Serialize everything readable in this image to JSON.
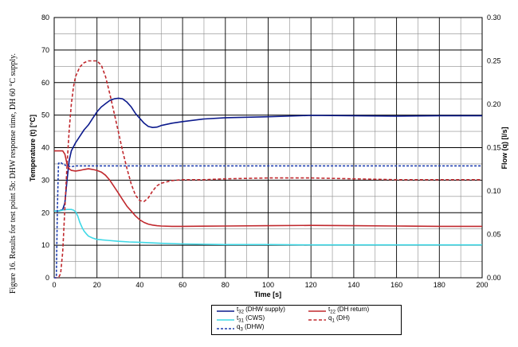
{
  "caption": "Figure 16. Results for test point 5b: DHW response time, DH 60 °C supply.",
  "chart_data": {
    "type": "line",
    "xlabel": "Time [s]",
    "ylabel_left": "Temperature (t) [°C]",
    "ylabel_right": "Flow (q) [l/s]",
    "xlim": [
      0,
      200
    ],
    "ylim_left": [
      0,
      80
    ],
    "ylim_right": [
      0,
      0.3
    ],
    "x_ticks": [
      0,
      20,
      40,
      60,
      80,
      100,
      120,
      140,
      160,
      180,
      200
    ],
    "y_ticks_left": [
      0,
      10,
      20,
      30,
      40,
      50,
      60,
      70,
      80
    ],
    "y_ticks_right": [
      "0.00",
      "0.05",
      "0.10",
      "0.15",
      "0.20",
      "0.25",
      "0.30"
    ],
    "grid": true,
    "legend_position": "bottom-center",
    "series": [
      {
        "name": "t32 (DHW supply)",
        "label_main": "t",
        "label_sub": "32",
        "label_rest": " (DHW supply)",
        "axis": "left",
        "color": "#0c1a8c",
        "dash": "solid",
        "x": [
          0,
          2,
          4,
          5,
          6,
          7,
          8,
          10,
          12,
          14,
          16,
          18,
          20,
          22,
          24,
          26,
          28,
          30,
          32,
          34,
          36,
          38,
          40,
          42,
          44,
          46,
          48,
          50,
          55,
          60,
          70,
          80,
          100,
          120,
          140,
          160,
          180,
          200
        ],
        "y": [
          20.5,
          20.5,
          21,
          23,
          30,
          36,
          39,
          41.5,
          43.5,
          45.5,
          47,
          49,
          51,
          52.5,
          53.5,
          54.5,
          55,
          55.2,
          55,
          54,
          52.5,
          50.5,
          49,
          47.5,
          46.5,
          46.2,
          46.3,
          46.8,
          47.5,
          48,
          48.8,
          49.2,
          49.5,
          49.9,
          49.8,
          49.7,
          49.8,
          49.8
        ]
      },
      {
        "name": "t22 (DH return)",
        "label_main": "t",
        "label_sub": "22",
        "label_rest": " (DH return)",
        "axis": "left",
        "color": "#c0282d",
        "dash": "solid",
        "x": [
          0,
          4,
          5,
          6,
          7,
          8,
          10,
          12,
          14,
          16,
          18,
          20,
          22,
          24,
          26,
          28,
          30,
          32,
          34,
          36,
          38,
          40,
          42,
          44,
          46,
          48,
          50,
          55,
          60,
          80,
          100,
          120,
          140,
          160,
          180,
          200
        ],
        "y": [
          39,
          39,
          38,
          35,
          33.5,
          33,
          32.8,
          33,
          33.3,
          33.5,
          33.3,
          33,
          32.5,
          31.5,
          30,
          28,
          26,
          24,
          22,
          20.5,
          19,
          17.8,
          17,
          16.5,
          16.2,
          16,
          15.9,
          15.8,
          15.8,
          15.9,
          16,
          16.1,
          16,
          15.9,
          15.8,
          15.8
        ]
      },
      {
        "name": "t31 (CWS)",
        "label_main": "t",
        "label_sub": "31",
        "label_rest": " (CWS)",
        "axis": "left",
        "color": "#3fd8e6",
        "dash": "solid",
        "x": [
          0,
          2,
          4,
          6,
          8,
          9,
          10,
          11,
          12,
          13,
          14,
          15,
          16,
          18,
          20,
          25,
          30,
          35,
          40,
          50,
          60,
          80,
          100,
          120,
          140,
          160,
          180,
          200
        ],
        "y": [
          20.5,
          20.5,
          20.8,
          21,
          21,
          20.8,
          20.3,
          19,
          17,
          15.5,
          14.3,
          13.5,
          12.8,
          12.2,
          11.8,
          11.5,
          11.2,
          11,
          10.9,
          10.6,
          10.4,
          10.2,
          10.2,
          10.1,
          10.1,
          10.1,
          10.1,
          10.1
        ]
      },
      {
        "name": "q1 (DH)",
        "label_main": "q",
        "label_sub": "1",
        "label_rest": " (DH)",
        "axis": "right",
        "color": "#c0282d",
        "dash": "dashed",
        "x": [
          0,
          2,
          3,
          4,
          5,
          6,
          7,
          8,
          9,
          10,
          12,
          14,
          16,
          18,
          20,
          22,
          24,
          26,
          28,
          30,
          32,
          34,
          36,
          38,
          40,
          42,
          44,
          46,
          48,
          50,
          55,
          60,
          70,
          80,
          100,
          120,
          140,
          160,
          180,
          200
        ],
        "y": [
          0.0,
          0.0,
          0.005,
          0.03,
          0.08,
          0.13,
          0.17,
          0.2,
          0.22,
          0.232,
          0.243,
          0.248,
          0.25,
          0.25,
          0.25,
          0.245,
          0.232,
          0.212,
          0.19,
          0.168,
          0.146,
          0.126,
          0.108,
          0.095,
          0.089,
          0.088,
          0.092,
          0.1,
          0.106,
          0.109,
          0.112,
          0.113,
          0.113,
          0.114,
          0.115,
          0.115,
          0.114,
          0.113,
          0.113,
          0.113
        ]
      },
      {
        "name": "q3 (DHW)",
        "label_main": "q",
        "label_sub": "3",
        "label_rest": " (DHW)",
        "axis": "right",
        "color": "#1f3fb0",
        "dash": "dotted",
        "x": [
          0,
          1,
          1.5,
          2,
          3,
          4,
          6,
          8,
          10,
          20,
          40,
          60,
          80,
          100,
          120,
          140,
          160,
          180,
          200
        ],
        "y": [
          0.0,
          0.0,
          0.08,
          0.132,
          0.133,
          0.131,
          0.129,
          0.128,
          0.129,
          0.129,
          0.129,
          0.129,
          0.129,
          0.129,
          0.129,
          0.129,
          0.129,
          0.129,
          0.129
        ]
      }
    ]
  }
}
